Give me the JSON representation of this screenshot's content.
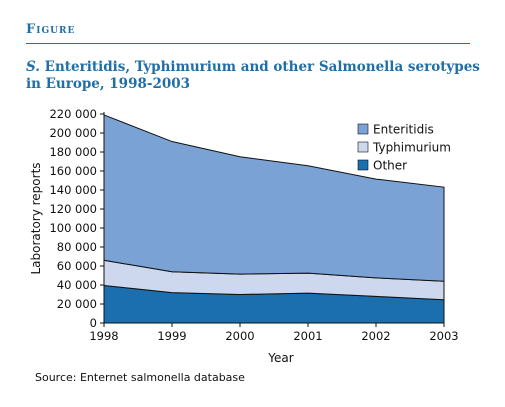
{
  "header": {
    "figure_label": "Figure",
    "title_italic": "S.",
    "title_rest": "Enteritidis, Typhimurium and other Salmonella serotypes in Europe, 1998-2003"
  },
  "footer": {
    "source": "Source: Enternet salmonella database"
  },
  "chart_data": {
    "type": "area",
    "stacked": true,
    "x": [
      1998,
      1999,
      2000,
      2001,
      2002,
      2003
    ],
    "xlabel": "Year",
    "ylabel": "Laboratory reports",
    "ylim": [
      0,
      220000
    ],
    "yticks": [
      0,
      20000,
      40000,
      60000,
      80000,
      100000,
      120000,
      140000,
      160000,
      180000,
      200000,
      220000
    ],
    "ytick_labels": [
      "0",
      "20 000",
      "40 000",
      "60 000",
      "80 000",
      "100 000",
      "120 000",
      "140 000",
      "160 000",
      "180 000",
      "200 000",
      "220 000"
    ],
    "xtick_labels": [
      "1998",
      "1999",
      "2000",
      "2001",
      "2002",
      "2003"
    ],
    "series": [
      {
        "name": "Other",
        "color": "#1b6fae",
        "values": [
          39500,
          32000,
          30000,
          31500,
          28000,
          24500
        ]
      },
      {
        "name": "Typhimurium",
        "color": "#cdd8ee",
        "values": [
          26500,
          22000,
          21500,
          21000,
          19500,
          19500
        ]
      },
      {
        "name": "Enteritidis",
        "color": "#7aa2d4",
        "values": [
          153000,
          137000,
          123500,
          113000,
          104000,
          99000
        ]
      }
    ],
    "legend_order": [
      "Enteritidis",
      "Typhimurium",
      "Other"
    ],
    "legend_position": "top-right",
    "grid": false
  }
}
